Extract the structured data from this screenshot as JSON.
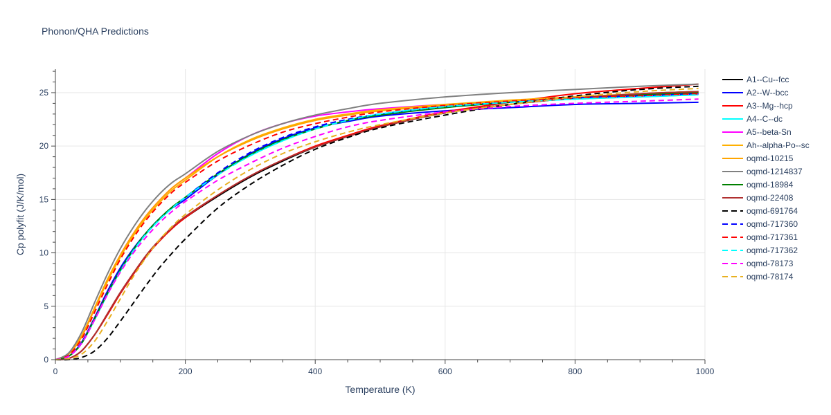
{
  "chart_data": {
    "type": "line",
    "title": "Phonon/QHA Predictions",
    "xlabel": "Temperature (K)",
    "ylabel": "Cp polyfit (J/K/mol)",
    "xlim": [
      0,
      1000
    ],
    "ylim": [
      0,
      27.2
    ],
    "xticks": [
      0,
      200,
      400,
      600,
      800,
      1000
    ],
    "yticks": [
      0,
      5,
      10,
      15,
      20,
      25
    ],
    "grid": true,
    "legend_position": "right",
    "x": [
      0,
      20,
      40,
      60,
      80,
      100,
      120,
      140,
      160,
      180,
      200,
      250,
      300,
      350,
      400,
      450,
      500,
      600,
      700,
      800,
      900,
      990
    ],
    "series": [
      {
        "name": "A1--Cu--fcc",
        "color": "#000000",
        "dash": "solid",
        "values": [
          0,
          0.1,
          0.8,
          2.3,
          4.2,
          6.2,
          8.0,
          9.7,
          11.1,
          12.3,
          13.3,
          15.3,
          17.1,
          18.6,
          19.9,
          20.9,
          21.8,
          23.1,
          23.9,
          24.5,
          24.9,
          25.1
        ]
      },
      {
        "name": "A2--W--bcc",
        "color": "#0000ff",
        "dash": "solid",
        "values": [
          0,
          0.3,
          1.6,
          3.9,
          6.4,
          8.6,
          10.4,
          11.9,
          13.2,
          14.2,
          15.0,
          17.3,
          19.3,
          20.7,
          21.7,
          22.3,
          22.8,
          23.3,
          23.6,
          23.9,
          24.0,
          24.1
        ]
      },
      {
        "name": "A3--Mg--hcp",
        "color": "#ff0000",
        "dash": "solid",
        "values": [
          0,
          0.1,
          0.8,
          2.3,
          4.2,
          6.2,
          8.0,
          9.7,
          11.1,
          12.3,
          13.3,
          15.4,
          17.2,
          18.7,
          20.0,
          21.0,
          21.9,
          23.2,
          24.1,
          24.9,
          25.4,
          25.8
        ]
      },
      {
        "name": "A4--C--dc",
        "color": "#00ffff",
        "dash": "solid",
        "values": [
          0,
          0.3,
          1.5,
          3.7,
          6.1,
          8.3,
          10.2,
          11.8,
          13.1,
          14.2,
          15.2,
          17.4,
          19.1,
          20.5,
          21.6,
          22.4,
          23.0,
          23.7,
          24.1,
          24.4,
          24.6,
          24.8
        ]
      },
      {
        "name": "A5--beta-Sn",
        "color": "#ff00ff",
        "dash": "solid",
        "values": [
          0,
          0.5,
          2.1,
          4.7,
          7.4,
          9.8,
          11.8,
          13.5,
          14.9,
          16.1,
          17.0,
          19.3,
          21.0,
          22.1,
          22.8,
          23.2,
          23.5,
          23.9,
          24.2,
          24.5,
          24.7,
          24.9
        ]
      },
      {
        "name": "Ah--alpha-Po--sc",
        "color": "#ffb000",
        "dash": "solid",
        "values": [
          0,
          0.5,
          2.1,
          4.7,
          7.3,
          9.6,
          11.6,
          13.3,
          14.7,
          15.9,
          16.8,
          19.0,
          20.6,
          21.7,
          22.5,
          23.0,
          23.4,
          23.9,
          24.3,
          24.6,
          24.9,
          25.1
        ]
      },
      {
        "name": "oqmd-10215",
        "color": "#ffa500",
        "dash": "solid",
        "values": [
          0,
          0.5,
          2.2,
          4.8,
          7.5,
          9.8,
          11.8,
          13.5,
          14.9,
          16.1,
          17.0,
          19.0,
          20.5,
          21.6,
          22.4,
          22.9,
          23.3,
          23.8,
          24.2,
          24.5,
          24.8,
          25.0
        ]
      },
      {
        "name": "oqmd-1214837",
        "color": "#808080",
        "dash": "solid",
        "values": [
          0,
          0.6,
          2.5,
          5.3,
          8.0,
          10.4,
          12.4,
          14.1,
          15.5,
          16.6,
          17.4,
          19.5,
          21.0,
          22.1,
          22.9,
          23.5,
          24.0,
          24.6,
          25.0,
          25.3,
          25.6,
          25.8
        ]
      },
      {
        "name": "oqmd-18984",
        "color": "#008000",
        "dash": "solid",
        "values": [
          0,
          0.3,
          1.5,
          3.8,
          6.2,
          8.4,
          10.3,
          11.9,
          13.2,
          14.3,
          15.2,
          17.4,
          19.2,
          20.6,
          21.6,
          22.4,
          22.9,
          23.6,
          24.1,
          24.5,
          24.8,
          25.0
        ]
      },
      {
        "name": "oqmd-22408",
        "color": "#b03030",
        "dash": "solid",
        "values": [
          0,
          0.1,
          0.8,
          2.3,
          4.3,
          6.3,
          8.1,
          9.8,
          11.2,
          12.4,
          13.4,
          15.4,
          17.2,
          18.7,
          19.9,
          20.9,
          21.8,
          23.1,
          23.9,
          24.5,
          24.9,
          25.1
        ]
      },
      {
        "name": "oqmd-691764",
        "color": "#000000",
        "dash": "dash",
        "values": [
          0,
          0.0,
          0.2,
          0.8,
          2.0,
          3.6,
          5.3,
          7.0,
          8.6,
          10.0,
          11.3,
          14.2,
          16.4,
          18.2,
          19.7,
          20.8,
          21.7,
          22.9,
          23.9,
          24.7,
          25.3,
          25.6
        ]
      },
      {
        "name": "oqmd-717360",
        "color": "#0000ff",
        "dash": "dash",
        "values": [
          0,
          0.3,
          1.5,
          3.7,
          6.1,
          8.3,
          10.2,
          11.8,
          13.1,
          14.2,
          15.2,
          17.5,
          19.4,
          20.8,
          21.8,
          22.5,
          23.0,
          23.7,
          24.1,
          24.5,
          24.7,
          24.9
        ]
      },
      {
        "name": "oqmd-717361",
        "color": "#ff0000",
        "dash": "dash",
        "values": [
          0,
          0.4,
          1.9,
          4.4,
          7.0,
          9.4,
          11.4,
          13.1,
          14.5,
          15.7,
          16.6,
          18.6,
          20.1,
          21.3,
          22.1,
          22.7,
          23.2,
          23.8,
          24.2,
          24.5,
          24.7,
          24.9
        ]
      },
      {
        "name": "oqmd-717362",
        "color": "#00ffff",
        "dash": "dash",
        "values": [
          0,
          0.3,
          1.5,
          3.7,
          6.1,
          8.3,
          10.2,
          11.8,
          13.1,
          14.2,
          15.2,
          17.3,
          19.1,
          20.5,
          21.6,
          22.4,
          23.0,
          23.7,
          24.1,
          24.4,
          24.6,
          24.8
        ]
      },
      {
        "name": "oqmd-78173",
        "color": "#ff00ff",
        "dash": "dash",
        "values": [
          0,
          0.3,
          1.5,
          3.7,
          6.1,
          8.2,
          10.0,
          11.5,
          12.8,
          13.9,
          14.8,
          16.8,
          18.4,
          19.8,
          20.9,
          21.8,
          22.4,
          23.2,
          23.7,
          24.0,
          24.2,
          24.4
        ]
      },
      {
        "name": "oqmd-78174",
        "color": "#e8b020",
        "dash": "dash",
        "values": [
          0,
          0.1,
          0.5,
          1.7,
          3.6,
          5.7,
          7.8,
          9.6,
          11.2,
          12.5,
          13.6,
          15.9,
          17.8,
          19.3,
          20.4,
          21.3,
          22.0,
          23.1,
          23.9,
          24.6,
          25.1,
          25.4
        ]
      }
    ]
  }
}
